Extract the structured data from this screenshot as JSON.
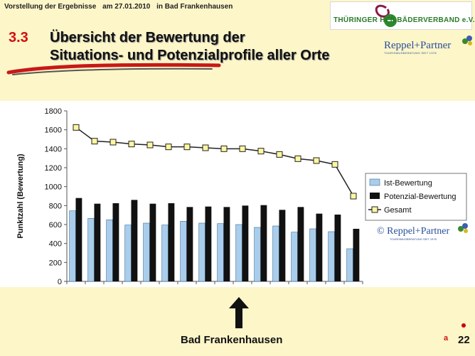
{
  "header": {
    "presentation": "Vorstellung der Ergebnisse",
    "date": "am 27.01.2010",
    "place": "in Bad Frankenhausen"
  },
  "logo_top": {
    "text": "THÜRINGER HEILBÄDERVERBAND e.V."
  },
  "logo_rp": {
    "name": "Reppel+Partner",
    "sub": "TOURISMUSBERATUNG SEIT 1978"
  },
  "logo_rp_chart": {
    "name": "© Reppel+Partner",
    "sub": "TOURISMUSBERATUNG SEIT 1978"
  },
  "section": {
    "number": "3.3",
    "title_line1": "Übersicht der Bewertung der",
    "title_line2": "Situations- und Potenzialprofile aller Orte"
  },
  "footer": {
    "label": "Bad Frankenhausen",
    "page": "22",
    "marker": "a"
  },
  "colors": {
    "ist": "#a9cdea",
    "potenzial": "#111111",
    "gesamt_fill": "#fff7a0",
    "gesamt_line": "#222222"
  },
  "chart_data": {
    "type": "bar",
    "ylabel": "Punktzahl (Bewertung)",
    "ylim": [
      0,
      1800
    ],
    "yticks": [
      0,
      200,
      400,
      600,
      800,
      1000,
      1200,
      1400,
      1600,
      1800
    ],
    "grid": false,
    "legend": "right",
    "categories": [
      "",
      "",
      "",
      "",
      "",
      "",
      "",
      "",
      "",
      "",
      "",
      "",
      "",
      "",
      "",
      ""
    ],
    "series": [
      {
        "name": "Ist-Bewertung",
        "kind": "bar",
        "values": [
          745,
          665,
          650,
          595,
          615,
          595,
          635,
          615,
          610,
          600,
          570,
          585,
          520,
          555,
          525,
          345
        ]
      },
      {
        "name": "Potenzial-Bewertung",
        "kind": "bar",
        "values": [
          880,
          820,
          825,
          860,
          820,
          825,
          785,
          790,
          785,
          800,
          805,
          755,
          785,
          715,
          705,
          555
        ]
      },
      {
        "name": "Gesamt",
        "kind": "line",
        "values": [
          1625,
          1480,
          1470,
          1450,
          1440,
          1420,
          1420,
          1410,
          1400,
          1400,
          1375,
          1340,
          1295,
          1275,
          1235,
          900
        ]
      }
    ]
  }
}
